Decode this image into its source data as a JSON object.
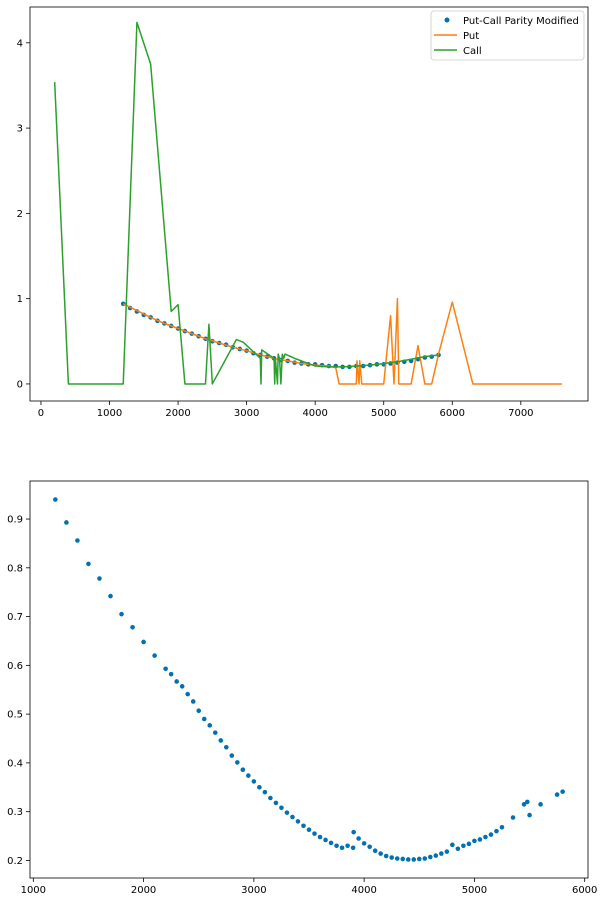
{
  "chart_data": [
    {
      "type": "line",
      "title": "",
      "xlabel": "",
      "ylabel": "",
      "xlim": [
        -160,
        7980
      ],
      "ylim": [
        -0.2,
        4.42
      ],
      "xticks": [
        0,
        1000,
        2000,
        3000,
        4000,
        5000,
        6000,
        7000
      ],
      "xtick_labels": [
        "0",
        "1000",
        "2000",
        "3000",
        "4000",
        "5000",
        "6000",
        "7000"
      ],
      "yticks": [
        0,
        1,
        2,
        3,
        4
      ],
      "ytick_labels": [
        "0",
        "1",
        "2",
        "3",
        "4"
      ],
      "grid": false,
      "legend": "top-right",
      "series": [
        {
          "name": "Put-Call Parity Modified",
          "kind": "scatter",
          "color": "#0072b2",
          "x": [
            1200,
            1300,
            1400,
            1500,
            1600,
            1700,
            1800,
            1900,
            2000,
            2100,
            2200,
            2300,
            2400,
            2500,
            2600,
            2700,
            2800,
            2900,
            3000,
            3100,
            3200,
            3300,
            3400,
            3500,
            3600,
            3700,
            3800,
            3900,
            4000,
            4100,
            4200,
            4300,
            4400,
            4500,
            4600,
            4700,
            4800,
            4900,
            5000,
            5100,
            5200,
            5300,
            5400,
            5500,
            5600,
            5700,
            5800
          ],
          "y": [
            0.94,
            0.89,
            0.85,
            0.81,
            0.78,
            0.74,
            0.71,
            0.68,
            0.65,
            0.62,
            0.59,
            0.56,
            0.53,
            0.5,
            0.48,
            0.46,
            0.43,
            0.41,
            0.39,
            0.36,
            0.34,
            0.32,
            0.3,
            0.28,
            0.27,
            0.25,
            0.24,
            0.23,
            0.23,
            0.22,
            0.21,
            0.21,
            0.2,
            0.2,
            0.21,
            0.21,
            0.22,
            0.23,
            0.23,
            0.24,
            0.25,
            0.26,
            0.27,
            0.29,
            0.31,
            0.32,
            0.34
          ]
        },
        {
          "name": "Put",
          "kind": "line",
          "color": "#ff7f0e",
          "x": [
            1200,
            1400,
            1600,
            1800,
            2000,
            2200,
            2400,
            2600,
            2800,
            3000,
            3200,
            3400,
            3600,
            3800,
            4000,
            4200,
            4300,
            4350,
            4400,
            4500,
            4600,
            4610,
            4640,
            4650,
            4680,
            4700,
            4800,
            4900,
            5000,
            5100,
            5150,
            5200,
            5220,
            5260,
            5400,
            5500,
            5600,
            5700,
            5800,
            6000,
            6300,
            7000,
            7600
          ],
          "y": [
            0.94,
            0.86,
            0.78,
            0.71,
            0.65,
            0.59,
            0.53,
            0.48,
            0.43,
            0.39,
            0.34,
            0.3,
            0.27,
            0.24,
            0.22,
            0.21,
            0.19,
            0.0,
            0.0,
            0.0,
            0.0,
            0.27,
            0.0,
            0.27,
            0.0,
            0.0,
            0.0,
            0.0,
            0.0,
            0.8,
            0.0,
            1.0,
            0.0,
            0.0,
            0.0,
            0.45,
            0.0,
            0.0,
            0.35,
            0.96,
            0.0,
            0.0,
            0.0
          ]
        },
        {
          "name": "Call",
          "kind": "line",
          "color": "#2ca02c",
          "x": [
            200,
            400,
            1200,
            1400,
            1600,
            1900,
            2000,
            2100,
            2400,
            2450,
            2500,
            2850,
            2950,
            3200,
            3210,
            3220,
            3400,
            3410,
            3420,
            3450,
            3460,
            3480,
            3500,
            3520,
            3540,
            3560,
            3700,
            4000,
            4200,
            4400,
            4600,
            4800,
            5000,
            5200,
            5400,
            5600,
            5800
          ],
          "y": [
            3.54,
            0.0,
            0.0,
            4.24,
            3.75,
            0.85,
            0.93,
            0.0,
            0.0,
            0.7,
            0.0,
            0.52,
            0.49,
            0.3,
            0.0,
            0.4,
            0.3,
            0.0,
            0.3,
            0.0,
            0.35,
            0.3,
            0.0,
            0.35,
            0.3,
            0.35,
            0.3,
            0.21,
            0.2,
            0.2,
            0.21,
            0.22,
            0.24,
            0.26,
            0.29,
            0.32,
            0.34
          ]
        }
      ]
    },
    {
      "type": "scatter",
      "title": "",
      "xlabel": "",
      "ylabel": "",
      "xlim": [
        970,
        6030
      ],
      "ylim": [
        0.164,
        0.978
      ],
      "xticks": [
        1000,
        2000,
        3000,
        4000,
        5000,
        6000
      ],
      "xtick_labels": [
        "1000",
        "2000",
        "3000",
        "4000",
        "5000",
        "6000"
      ],
      "yticks": [
        0.2,
        0.3,
        0.4,
        0.5,
        0.6,
        0.7,
        0.8,
        0.9
      ],
      "ytick_labels": [
        "0.2",
        "0.3",
        "0.4",
        "0.5",
        "0.6",
        "0.7",
        "0.8",
        "0.9"
      ],
      "grid": false,
      "legend": "none",
      "series": [
        {
          "kind": "scatter",
          "color": "#0072b2",
          "x": [
            1200,
            1300,
            1400,
            1500,
            1600,
            1700,
            1800,
            1900,
            2000,
            2100,
            2200,
            2250,
            2300,
            2350,
            2400,
            2450,
            2500,
            2550,
            2600,
            2650,
            2700,
            2750,
            2800,
            2850,
            2900,
            2950,
            3000,
            3050,
            3100,
            3150,
            3200,
            3250,
            3300,
            3350,
            3400,
            3450,
            3500,
            3550,
            3600,
            3650,
            3700,
            3750,
            3800,
            3850,
            3900,
            3905,
            3950,
            4000,
            4050,
            4100,
            4150,
            4200,
            4250,
            4300,
            4350,
            4400,
            4450,
            4500,
            4550,
            4600,
            4650,
            4700,
            4750,
            4800,
            4850,
            4900,
            4950,
            5000,
            5050,
            5100,
            5150,
            5200,
            5250,
            5350,
            5450,
            5480,
            5500,
            5600,
            5750,
            5800
          ],
          "y": [
            0.94,
            0.893,
            0.856,
            0.808,
            0.778,
            0.742,
            0.705,
            0.678,
            0.648,
            0.62,
            0.593,
            0.582,
            0.567,
            0.557,
            0.541,
            0.526,
            0.507,
            0.49,
            0.477,
            0.462,
            0.446,
            0.432,
            0.415,
            0.401,
            0.386,
            0.374,
            0.362,
            0.35,
            0.34,
            0.328,
            0.318,
            0.308,
            0.298,
            0.289,
            0.28,
            0.271,
            0.263,
            0.255,
            0.248,
            0.242,
            0.236,
            0.23,
            0.226,
            0.23,
            0.226,
            0.258,
            0.245,
            0.235,
            0.228,
            0.22,
            0.214,
            0.209,
            0.206,
            0.204,
            0.203,
            0.202,
            0.202,
            0.203,
            0.204,
            0.207,
            0.21,
            0.214,
            0.218,
            0.232,
            0.224,
            0.23,
            0.234,
            0.24,
            0.243,
            0.248,
            0.253,
            0.26,
            0.268,
            0.288,
            0.315,
            0.32,
            0.293,
            0.315,
            0.335,
            0.341
          ]
        }
      ]
    }
  ],
  "legend_items": [
    {
      "label": "Put-Call Parity Modified",
      "kind": "marker",
      "color": "#0072b2"
    },
    {
      "label": "Put",
      "kind": "line",
      "color": "#ff7f0e"
    },
    {
      "label": "Call",
      "kind": "line",
      "color": "#2ca02c"
    }
  ]
}
